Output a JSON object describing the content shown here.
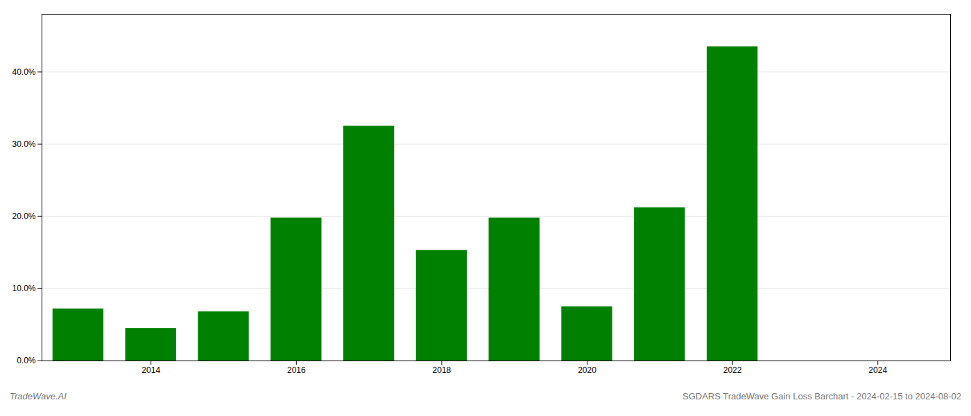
{
  "chart_data": {
    "type": "bar",
    "x": [
      2013,
      2014,
      2015,
      2016,
      2017,
      2018,
      2019,
      2020,
      2021,
      2022
    ],
    "values": [
      0.072,
      0.045,
      0.068,
      0.198,
      0.325,
      0.153,
      0.198,
      0.075,
      0.212,
      0.435
    ],
    "color": "#008000",
    "xlim": [
      2012.5,
      2025.0
    ],
    "xticks": [
      2014,
      2016,
      2018,
      2020,
      2022,
      2024
    ],
    "ylim": [
      0,
      0.48
    ],
    "yticks": [
      {
        "value": 0.0,
        "label": "0.0%"
      },
      {
        "value": 0.1,
        "label": "10.0%"
      },
      {
        "value": 0.2,
        "label": "20.0%"
      },
      {
        "value": 0.3,
        "label": "30.0%"
      },
      {
        "value": 0.4,
        "label": "40.0%"
      }
    ],
    "grid": true,
    "annotations": [
      "TradeWave.AI",
      "SGDARS TradeWave Gain Loss Barchart - 2024-02-15 to 2024-08-02"
    ]
  }
}
